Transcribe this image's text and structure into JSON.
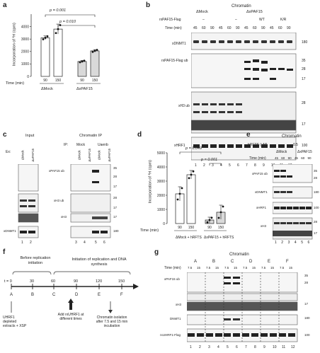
{
  "panels": {
    "a": {
      "letter": "a",
      "ylabel": "Incorporation of ³H (cpm)",
      "xlabel": "Time (min)",
      "p_values": [
        "p = 0.001",
        "p = 0.010"
      ],
      "groups": [
        "ΔMock",
        "ΔxPAF15"
      ],
      "time_labels": [
        "90",
        "150",
        "90",
        "150"
      ]
    },
    "b": {
      "letter": "b",
      "header": "Chromatin",
      "group_labels": [
        "ΔMock",
        "ΔxPAF15"
      ],
      "row_label": "rxPAF15-Flag",
      "treatments": [
        "–",
        "–",
        "WT",
        "K/R"
      ],
      "time_label": "Time (min)",
      "times": [
        "45",
        "60",
        "90",
        "45",
        "60",
        "90",
        "45",
        "60",
        "90",
        "45",
        "60",
        "90"
      ],
      "blot_rows": [
        {
          "label": "xDNMT1",
          "mw": [
            "180"
          ]
        },
        {
          "label": "rxPAF15-Flag ub",
          "mw": [
            "35",
            "28",
            "17"
          ]
        },
        {
          "label": "xH3 ub",
          "mw": [
            "28",
            "17"
          ]
        },
        {
          "label": "xHRF1",
          "mw": [
            "100"
          ]
        }
      ],
      "lanes": [
        "1",
        "2",
        "3",
        "4",
        "5",
        "6",
        "7",
        "8",
        "9",
        "10",
        "11",
        "12"
      ]
    },
    "c": {
      "letter": "c",
      "input_title": "Input",
      "chip_title": "Chromatin IP",
      "ip_label": "IP:",
      "ip_groups": [
        "Mock",
        "Uaenb"
      ],
      "lane_labels": [
        "ΔMock",
        "ΔxPAF15"
      ],
      "ex_label": "Ex:",
      "blot_rows": [
        {
          "label": "xPAF15 ub",
          "mw": [
            "35",
            "28",
            "17"
          ]
        },
        {
          "label": "xH3 ub",
          "mw": [
            "28",
            "17"
          ]
        },
        {
          "label": "xH3",
          "mw": [
            "17"
          ]
        },
        {
          "label": "xDNMT1",
          "mw": [
            "180"
          ]
        }
      ],
      "lanes": [
        "1",
        "2",
        "3",
        "4",
        "5",
        "6"
      ]
    },
    "d": {
      "letter": "d",
      "ylabel": "Incorporation of ³H (cpm)",
      "xlabel": "Time (min)",
      "p_values": [
        "p = 0.049",
        "p = 0.001"
      ],
      "groups": [
        "ΔMock + hRFTS",
        "ΔxPAF15 + hRFTS"
      ],
      "time_labels": [
        "90",
        "150",
        "90",
        "150"
      ]
    },
    "e": {
      "letter": "e",
      "header": "Chromatin",
      "row_label": "hRFTS (μM)",
      "conc": "0.5",
      "time_label": "Time (min)",
      "groups": [
        "ΔMock",
        "ΔxPAF15"
      ],
      "times": [
        "45",
        "60",
        "90",
        "45",
        "60",
        "90"
      ],
      "blot_rows": [
        {
          "label": "xPAF15 ub",
          "mw": [
            "35",
            "28"
          ]
        },
        {
          "label": "xDNMT1",
          "mw": [
            "180"
          ]
        },
        {
          "label": "xHRF1",
          "mw": [
            "100"
          ]
        },
        {
          "label": "xH3",
          "mw": [
            "28",
            "17"
          ]
        }
      ],
      "lanes": [
        "1",
        "2",
        "3",
        "4",
        "5",
        "6"
      ]
    },
    "f": {
      "letter": "f",
      "phase1": "Before replication initiation",
      "phase2": "Initiation of replication and DNA synthesis",
      "ticks": [
        "t = 0",
        "30",
        "60",
        "90",
        "120",
        "150"
      ],
      "letters": [
        "A",
        "B",
        "C",
        "D",
        "E",
        "F"
      ],
      "left_note": "UHRF1 depleted extracts + XSP",
      "add_note": "Add rxUHRF1 at different times",
      "chrom_note": "Chromatin isolation after 7.5 and 15 min incubation"
    },
    "g": {
      "letter": "g",
      "header": "Chromatin",
      "conditions": [
        "A",
        "B",
        "C",
        "D",
        "E",
        "F"
      ],
      "time_label": "Time (min)",
      "times": [
        "7.5",
        "15",
        "7.5",
        "15",
        "7.5",
        "15",
        "7.5",
        "15",
        "7.5",
        "15",
        "7.5",
        "15"
      ],
      "blot_rows": [
        {
          "label": "xPAF15 ub",
          "mw": [
            "35",
            "28"
          ]
        },
        {
          "label": "xH3",
          "mw": [
            "17"
          ]
        },
        {
          "label": "DNMT1",
          "mw": [
            "180"
          ]
        },
        {
          "label": "rxUHRF1-Flag",
          "mw": [
            "100"
          ]
        }
      ],
      "lanes": [
        "1",
        "2",
        "3",
        "4",
        "5",
        "6",
        "7",
        "8",
        "9",
        "10",
        "11",
        "12"
      ]
    }
  },
  "chart_data": [
    {
      "type": "bar",
      "panel": "a",
      "categories": [
        "ΔMock 90",
        "ΔMock 150",
        "ΔxPAF15 90",
        "ΔxPAF15 150"
      ],
      "values": [
        3100,
        3800,
        1200,
        2050
      ],
      "errors": [
        150,
        400,
        80,
        100
      ],
      "yticks": [
        0,
        1000,
        2000,
        3000,
        4000
      ],
      "ylim": [
        0,
        5000
      ],
      "ylabel": "Incorporation of ³H (cpm)",
      "xlabel": "Time (min)"
    },
    {
      "type": "bar",
      "panel": "d",
      "categories": [
        "ΔMock+hRFTS 90",
        "ΔMock+hRFTS 150",
        "ΔxPAF15+hRFTS 90",
        "ΔxPAF15+hRFTS 150"
      ],
      "values": [
        2100,
        3450,
        250,
        800
      ],
      "errors": [
        500,
        300,
        200,
        500
      ],
      "yticks": [
        0,
        1000,
        2000,
        3000,
        4000,
        5000
      ],
      "ylim": [
        0,
        5000
      ],
      "ylabel": "Incorporation of ³H (cpm)",
      "xlabel": "Time (min)"
    }
  ]
}
